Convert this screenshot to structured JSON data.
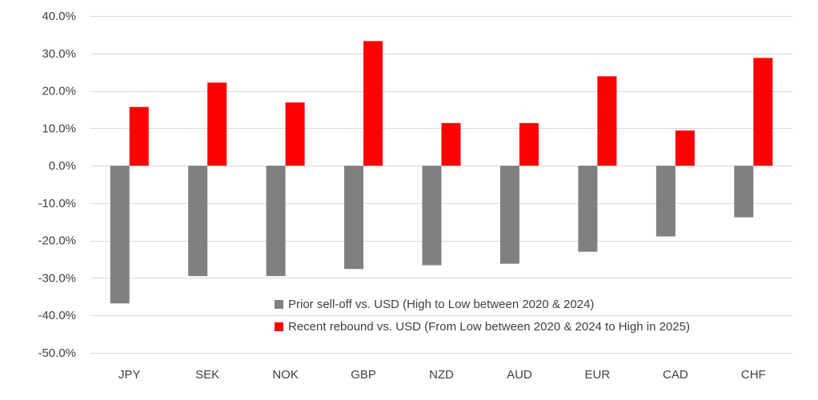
{
  "chart_data": {
    "type": "bar",
    "title": "",
    "xlabel": "",
    "ylabel": "",
    "categories": [
      "JPY",
      "SEK",
      "NOK",
      "GBP",
      "NZD",
      "AUD",
      "EUR",
      "CAD",
      "CHF"
    ],
    "ylim": [
      -50,
      40
    ],
    "y_ticks": [
      40,
      30,
      20,
      10,
      0,
      -10,
      -20,
      -30,
      -40,
      -50
    ],
    "y_tick_labels": [
      "40.0%",
      "30.0%",
      "20.0%",
      "10.0%",
      "0.0%",
      "-10.0%",
      "-20.0%",
      "-30.0%",
      "-40.0%",
      "-50.0%"
    ],
    "y_unit": "%",
    "grid": true,
    "legend_position": "bottom-right, inside plot",
    "series": [
      {
        "name": "Prior sell-off vs. USD (High to Low between 2020 & 2024)",
        "color": "#808080",
        "values": [
          -36.8,
          -29.5,
          -29.5,
          -27.6,
          -26.6,
          -26.2,
          -23.0,
          -18.9,
          -13.8
        ]
      },
      {
        "name": "Recent rebound vs. USD (From Low between 2020 & 2024 to High in 2025)",
        "color": "#ff0000",
        "values": [
          15.7,
          22.2,
          16.9,
          33.3,
          11.4,
          11.4,
          23.9,
          9.4,
          28.8
        ]
      }
    ]
  }
}
